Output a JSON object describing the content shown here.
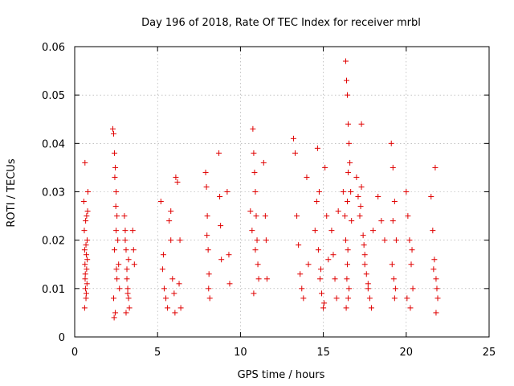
{
  "chart_data": {
    "type": "scatter",
    "title": "Day 196 of 2018, Rate Of TEC Index for receiver mrbl",
    "xlabel": "GPS time / hours",
    "ylabel": "ROTI / TECUs",
    "xlim": [
      0,
      25
    ],
    "ylim": [
      0,
      0.06
    ],
    "xticks": [
      0,
      5,
      10,
      15,
      20,
      25
    ],
    "xtick_labels": [
      "0",
      "5",
      "10",
      "15",
      "20",
      "25"
    ],
    "yticks": [
      0,
      0.01,
      0.02,
      0.03,
      0.04,
      0.05,
      0.06
    ],
    "ytick_labels": [
      "0",
      "0.01",
      "0.02",
      "0.03",
      "0.04",
      "0.05",
      "0.06"
    ],
    "grid": true,
    "marker": "plus",
    "color": "#e00000",
    "series": [
      {
        "name": "ROTI",
        "x": [
          0.55,
          0.58,
          0.6,
          0.62,
          0.63,
          0.65,
          0.68,
          0.7,
          0.72,
          0.75,
          0.78,
          0.8,
          0.62,
          0.66,
          0.7,
          0.74,
          0.6,
          0.64,
          0.68,
          0.72,
          0.76,
          2.3,
          2.35,
          2.4,
          2.45,
          2.5,
          2.55,
          2.6,
          2.65,
          2.7,
          2.35,
          2.45,
          2.55,
          2.4,
          2.5,
          2.42,
          2.48,
          2.38,
          2.52,
          3.0,
          3.05,
          3.1,
          3.15,
          3.2,
          3.25,
          3.3,
          3.05,
          3.15,
          3.25,
          3.5,
          3.55,
          3.6,
          3.1,
          3.2,
          5.2,
          5.3,
          5.4,
          5.5,
          5.6,
          5.7,
          5.8,
          5.9,
          6.0,
          6.1,
          6.2,
          6.3,
          6.4,
          5.35,
          5.8,
          6.05,
          6.35,
          7.9,
          7.95,
          8.0,
          8.05,
          8.1,
          8.15,
          7.98,
          8.08,
          8.7,
          8.75,
          8.8,
          8.85,
          9.2,
          9.3,
          9.35,
          10.6,
          10.7,
          10.75,
          10.8,
          10.85,
          10.9,
          10.95,
          11.0,
          11.05,
          11.1,
          10.8,
          10.9,
          11.5,
          11.55,
          11.6,
          11.4,
          13.2,
          13.3,
          13.4,
          13.5,
          13.6,
          13.7,
          13.8,
          14.0,
          14.1,
          14.5,
          14.6,
          14.7,
          14.8,
          14.9,
          15.0,
          15.1,
          15.2,
          15.3,
          14.65,
          14.75,
          14.85,
          15.05,
          15.5,
          15.6,
          15.7,
          15.8,
          15.9,
          16.2,
          16.3,
          16.35,
          16.4,
          16.45,
          16.5,
          16.55,
          16.6,
          16.65,
          16.7,
          16.35,
          16.45,
          16.55,
          16.38,
          16.42,
          16.48,
          16.5,
          16.5,
          16.45,
          17.0,
          17.1,
          17.2,
          17.3,
          17.4,
          17.5,
          17.6,
          17.7,
          17.8,
          17.9,
          18.0,
          17.3,
          17.5,
          17.7,
          17.25,
          17.45,
          18.3,
          18.5,
          18.7,
          19.1,
          19.2,
          19.3,
          19.4,
          19.15,
          19.25,
          19.35,
          19.3,
          19.2,
          20.0,
          20.1,
          20.2,
          20.3,
          20.4,
          20.05,
          20.25,
          20.35,
          21.5,
          21.6,
          21.7,
          21.8,
          21.9,
          21.65,
          21.75,
          21.85,
          21.8
        ],
        "y": [
          0.028,
          0.022,
          0.018,
          0.015,
          0.012,
          0.01,
          0.008,
          0.009,
          0.014,
          0.02,
          0.026,
          0.03,
          0.036,
          0.024,
          0.017,
          0.011,
          0.006,
          0.013,
          0.019,
          0.025,
          0.016,
          0.043,
          0.042,
          0.038,
          0.035,
          0.03,
          0.025,
          0.02,
          0.015,
          0.01,
          0.008,
          0.005,
          0.012,
          0.018,
          0.022,
          0.033,
          0.027,
          0.004,
          0.014,
          0.025,
          0.022,
          0.018,
          0.014,
          0.01,
          0.008,
          0.006,
          0.02,
          0.012,
          0.016,
          0.022,
          0.018,
          0.015,
          0.005,
          0.009,
          0.028,
          0.014,
          0.01,
          0.008,
          0.006,
          0.024,
          0.02,
          0.012,
          0.009,
          0.033,
          0.032,
          0.011,
          0.006,
          0.017,
          0.026,
          0.005,
          0.02,
          0.034,
          0.031,
          0.025,
          0.018,
          0.013,
          0.008,
          0.021,
          0.01,
          0.038,
          0.029,
          0.023,
          0.016,
          0.03,
          0.017,
          0.011,
          0.026,
          0.022,
          0.043,
          0.038,
          0.034,
          0.03,
          0.025,
          0.02,
          0.015,
          0.012,
          0.009,
          0.018,
          0.025,
          0.02,
          0.012,
          0.036,
          0.041,
          0.038,
          0.025,
          0.019,
          0.013,
          0.01,
          0.008,
          0.033,
          0.015,
          0.022,
          0.028,
          0.018,
          0.012,
          0.009,
          0.006,
          0.035,
          0.025,
          0.016,
          0.039,
          0.03,
          0.014,
          0.007,
          0.022,
          0.017,
          0.012,
          0.008,
          0.026,
          0.03,
          0.025,
          0.057,
          0.053,
          0.05,
          0.044,
          0.04,
          0.036,
          0.03,
          0.024,
          0.02,
          0.015,
          0.01,
          0.006,
          0.012,
          0.018,
          0.008,
          0.034,
          0.028,
          0.033,
          0.029,
          0.025,
          0.044,
          0.021,
          0.017,
          0.013,
          0.01,
          0.008,
          0.006,
          0.022,
          0.031,
          0.015,
          0.011,
          0.027,
          0.019,
          0.029,
          0.024,
          0.02,
          0.04,
          0.035,
          0.028,
          0.02,
          0.015,
          0.012,
          0.01,
          0.008,
          0.024,
          0.03,
          0.025,
          0.02,
          0.015,
          0.01,
          0.008,
          0.006,
          0.018,
          0.029,
          0.022,
          0.016,
          0.012,
          0.008,
          0.014,
          0.035,
          0.01,
          0.005
        ]
      }
    ]
  }
}
